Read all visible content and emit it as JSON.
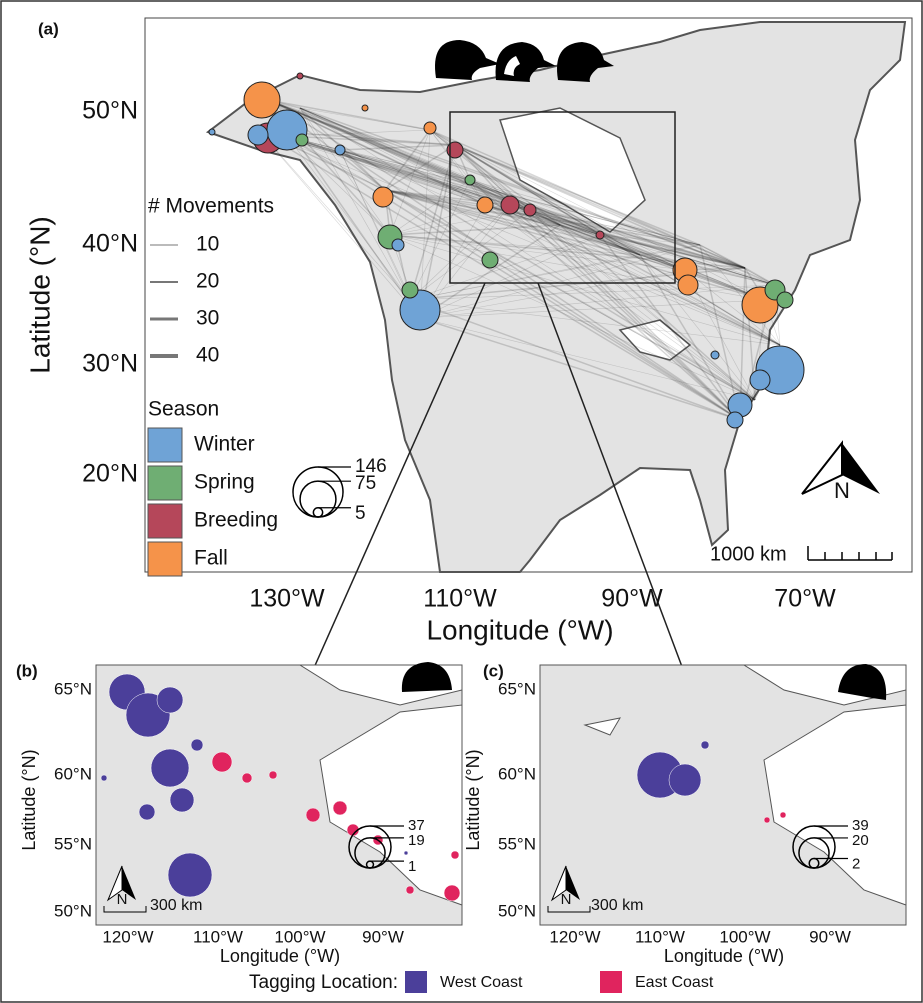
{
  "panel_a": {
    "label": "(a)",
    "y_axis_title": "Latitude (°N)",
    "x_axis_title": "Longitude (°W)",
    "yticks": [
      "50°N",
      "40°N",
      "30°N",
      "20°N"
    ],
    "xticks": [
      "130°W",
      "110°W",
      "90°W",
      "70°W"
    ],
    "movements_legend": {
      "title": "# Movements",
      "items": [
        10,
        20,
        30,
        40
      ]
    },
    "season_legend": {
      "title": "Season",
      "items": [
        "Winter",
        "Spring",
        "Breeding",
        "Fall"
      ],
      "colors": [
        "#6fa3d6",
        "#6fae73",
        "#b5475a",
        "#f5934a"
      ]
    },
    "size_legend": [
      146,
      75,
      5
    ],
    "scale_bar": "1000 km",
    "north": "N"
  },
  "panel_b": {
    "label": "(b)",
    "y_axis_title": "Latitude (°N)",
    "x_axis_title": "Longitude (°W)",
    "yticks": [
      "65°N",
      "60°N",
      "55°N",
      "50°N"
    ],
    "xticks": [
      "120°W",
      "110°W",
      "100°W",
      "90°W"
    ],
    "size_legend": [
      37,
      19,
      1
    ],
    "scale_bar": "300 km",
    "north": "N"
  },
  "panel_c": {
    "label": "(c)",
    "y_axis_title": "Latitude (°N)",
    "x_axis_title": "Longitude (°W)",
    "yticks": [
      "65°N",
      "60°N",
      "55°N",
      "50°N"
    ],
    "xticks": [
      "120°W",
      "110°W",
      "100°W",
      "90°W"
    ],
    "size_legend": [
      39,
      20,
      2
    ],
    "scale_bar": "300 km",
    "north": "N"
  },
  "legend": {
    "title": "Tagging Location:",
    "items": [
      "West Coast",
      "East Coast"
    ],
    "colors": [
      "#4b3f9a",
      "#e0245e"
    ]
  }
}
